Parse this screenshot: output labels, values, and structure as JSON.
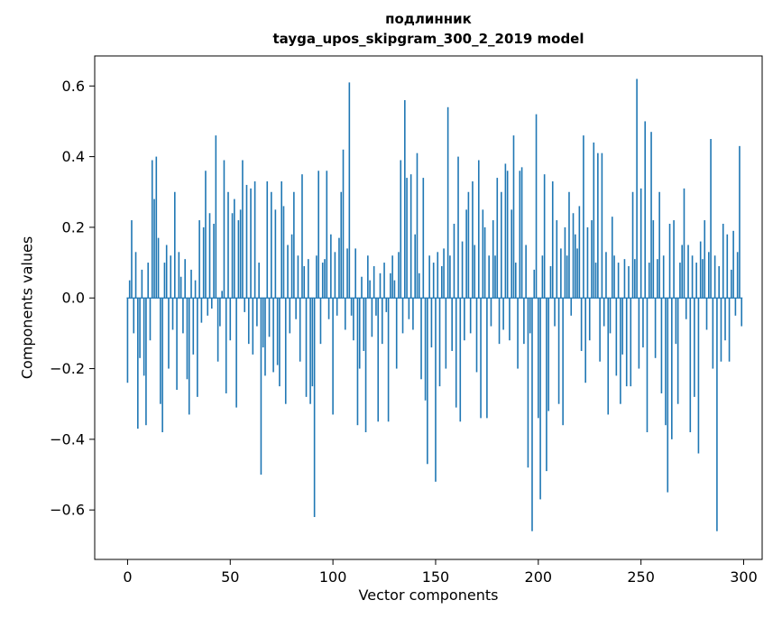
{
  "chart_data": {
    "type": "bar",
    "title": "подлинник",
    "subtitle": "tayga_upos_skipgram_300_2_2019 model",
    "xlabel": "Vector components",
    "ylabel": "Components values",
    "bar_color": "#1f77b4",
    "xlim": [
      -16,
      309
    ],
    "ylim": [
      -0.74,
      0.685
    ],
    "x_start": 0,
    "xtick_values": [
      0,
      50,
      100,
      150,
      200,
      250,
      300
    ],
    "xtick_labels": [
      "0",
      "50",
      "100",
      "150",
      "200",
      "250",
      "300"
    ],
    "ytick_values": [
      0.6,
      0.4,
      0.2,
      0.0,
      -0.2,
      -0.4,
      -0.6
    ],
    "ytick_labels": [
      "0.6",
      "0.4",
      "0.2",
      "0.0",
      "−0.2",
      "−0.4",
      "−0.6"
    ],
    "grid": false,
    "legend": null,
    "values": [
      -0.24,
      0.05,
      0.22,
      -0.1,
      0.13,
      -0.37,
      -0.17,
      0.08,
      -0.22,
      -0.36,
      0.1,
      -0.12,
      0.39,
      0.28,
      0.4,
      0.17,
      -0.3,
      -0.38,
      0.1,
      0.15,
      -0.2,
      0.12,
      -0.09,
      0.3,
      -0.26,
      0.13,
      0.06,
      -0.1,
      0.11,
      -0.23,
      -0.33,
      0.08,
      -0.16,
      0.05,
      -0.28,
      0.22,
      -0.07,
      0.2,
      0.36,
      -0.05,
      0.24,
      -0.03,
      0.21,
      0.46,
      -0.18,
      -0.08,
      0.02,
      0.39,
      -0.27,
      0.3,
      -0.12,
      0.24,
      0.28,
      -0.31,
      0.22,
      0.25,
      0.39,
      -0.04,
      0.32,
      -0.13,
      0.31,
      -0.16,
      0.33,
      -0.08,
      0.1,
      -0.5,
      -0.14,
      -0.22,
      0.33,
      -0.11,
      0.3,
      -0.21,
      0.25,
      -0.19,
      -0.25,
      0.33,
      0.26,
      -0.3,
      0.15,
      -0.1,
      0.18,
      0.3,
      -0.06,
      0.12,
      -0.18,
      0.35,
      0.09,
      -0.28,
      0.11,
      -0.3,
      -0.25,
      -0.62,
      0.12,
      0.36,
      -0.13,
      0.1,
      0.11,
      0.36,
      -0.06,
      0.18,
      -0.33,
      0.13,
      -0.05,
      0.17,
      0.3,
      0.42,
      -0.09,
      0.14,
      0.61,
      -0.05,
      -0.12,
      0.14,
      -0.36,
      -0.2,
      0.06,
      -0.15,
      -0.38,
      0.12,
      0.05,
      -0.11,
      0.09,
      -0.05,
      -0.35,
      0.07,
      -0.13,
      0.1,
      -0.04,
      -0.35,
      0.07,
      0.12,
      0.05,
      -0.2,
      0.13,
      0.39,
      -0.1,
      0.56,
      0.34,
      -0.06,
      0.35,
      -0.09,
      0.18,
      0.41,
      0.07,
      -0.23,
      0.34,
      -0.29,
      -0.47,
      0.12,
      -0.14,
      0.1,
      -0.52,
      0.13,
      -0.25,
      0.09,
      0.14,
      -0.2,
      0.54,
      0.12,
      -0.15,
      0.21,
      -0.31,
      0.4,
      -0.35,
      0.16,
      -0.12,
      0.25,
      0.3,
      -0.1,
      0.33,
      0.15,
      -0.21,
      0.39,
      -0.34,
      0.25,
      0.2,
      -0.34,
      0.12,
      -0.08,
      0.22,
      0.12,
      0.34,
      -0.13,
      0.3,
      -0.09,
      0.38,
      0.36,
      -0.12,
      0.25,
      0.46,
      0.1,
      -0.2,
      0.36,
      0.37,
      -0.13,
      0.15,
      -0.48,
      -0.1,
      -0.66,
      0.08,
      0.52,
      -0.34,
      -0.57,
      0.12,
      0.35,
      -0.49,
      -0.32,
      0.09,
      0.33,
      -0.08,
      0.22,
      -0.3,
      0.14,
      -0.36,
      0.2,
      0.12,
      0.3,
      -0.05,
      0.24,
      0.18,
      0.14,
      0.26,
      -0.15,
      0.46,
      -0.24,
      0.2,
      -0.12,
      0.22,
      0.44,
      0.1,
      0.41,
      -0.18,
      0.41,
      -0.08,
      0.13,
      -0.33,
      -0.1,
      0.23,
      0.12,
      -0.22,
      0.1,
      -0.3,
      -0.16,
      0.11,
      -0.25,
      0.09,
      -0.25,
      0.3,
      0.11,
      0.62,
      -0.2,
      0.31,
      -0.14,
      0.5,
      -0.38,
      0.1,
      0.47,
      0.22,
      -0.17,
      0.11,
      0.3,
      -0.27,
      0.12,
      -0.36,
      -0.55,
      0.21,
      -0.4,
      0.22,
      -0.13,
      -0.3,
      0.1,
      0.15,
      0.31,
      -0.06,
      0.15,
      -0.38,
      0.12,
      -0.28,
      0.1,
      -0.44,
      0.16,
      0.11,
      0.22,
      -0.09,
      0.13,
      0.45,
      -0.2,
      0.12,
      -0.66,
      0.09,
      -0.18,
      0.21,
      -0.12,
      0.18,
      -0.18,
      0.08,
      0.19,
      -0.05,
      0.13,
      0.43,
      -0.08
    ]
  }
}
